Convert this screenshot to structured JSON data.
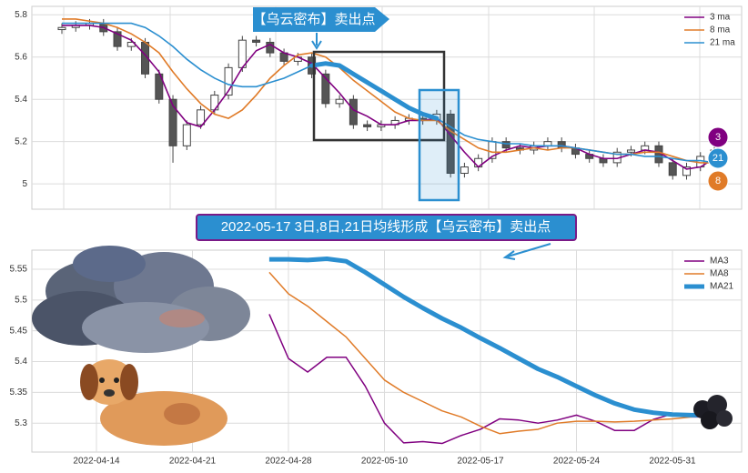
{
  "annotations": {
    "top_banner": "【乌云密布】卖出点",
    "mid_banner": "2022-05-17 3日,8日,21日均线形成【乌云密布】卖出点"
  },
  "chart_data": [
    {
      "type": "candlestick",
      "ylim": [
        4.88,
        5.84
      ],
      "yticks": [
        5.0,
        5.2,
        5.4,
        5.6,
        5.8
      ],
      "grid": true,
      "legend": "upper right",
      "open": [
        5.73,
        5.74,
        5.75,
        5.76,
        5.72,
        5.65,
        5.67,
        5.52,
        5.4,
        5.18,
        5.28,
        5.35,
        5.42,
        5.55,
        5.68,
        5.67,
        5.62,
        5.58,
        5.6,
        5.52,
        5.38,
        5.4,
        5.28,
        5.27,
        5.28,
        5.3,
        5.31,
        5.3,
        5.33,
        5.05,
        5.08,
        5.12,
        5.2,
        5.17,
        5.16,
        5.18,
        5.2,
        5.17,
        5.14,
        5.12,
        5.1,
        5.15,
        5.16,
        5.18,
        5.1,
        5.04,
        5.08,
        5.13
      ],
      "high": [
        5.76,
        5.77,
        5.78,
        5.78,
        5.74,
        5.69,
        5.69,
        5.54,
        5.42,
        5.3,
        5.37,
        5.44,
        5.57,
        5.7,
        5.7,
        5.69,
        5.64,
        5.62,
        5.62,
        5.54,
        5.42,
        5.42,
        5.3,
        5.3,
        5.32,
        5.33,
        5.33,
        5.35,
        5.35,
        5.1,
        5.14,
        5.22,
        5.22,
        5.19,
        5.2,
        5.22,
        5.22,
        5.19,
        5.16,
        5.14,
        5.17,
        5.18,
        5.2,
        5.2,
        5.12,
        5.1,
        5.15,
        5.18
      ],
      "low": [
        5.71,
        5.72,
        5.73,
        5.7,
        5.63,
        5.63,
        5.5,
        5.38,
        5.1,
        5.16,
        5.26,
        5.33,
        5.4,
        5.53,
        5.65,
        5.6,
        5.56,
        5.56,
        5.5,
        5.36,
        5.36,
        5.26,
        5.25,
        5.25,
        5.26,
        5.28,
        5.28,
        5.28,
        5.03,
        5.03,
        5.06,
        5.1,
        5.15,
        5.14,
        5.14,
        5.16,
        5.15,
        5.12,
        5.1,
        5.08,
        5.08,
        5.13,
        5.14,
        5.08,
        5.02,
        5.02,
        5.06,
        5.11
      ],
      "close": [
        5.74,
        5.75,
        5.76,
        5.72,
        5.65,
        5.67,
        5.52,
        5.4,
        5.18,
        5.28,
        5.35,
        5.42,
        5.55,
        5.68,
        5.67,
        5.62,
        5.58,
        5.6,
        5.52,
        5.38,
        5.4,
        5.28,
        5.27,
        5.28,
        5.3,
        5.31,
        5.3,
        5.33,
        5.05,
        5.08,
        5.12,
        5.2,
        5.17,
        5.16,
        5.18,
        5.2,
        5.17,
        5.14,
        5.12,
        5.1,
        5.15,
        5.16,
        5.18,
        5.1,
        5.04,
        5.08,
        5.13,
        5.16
      ],
      "series": [
        {
          "name": "3 ma",
          "color": "#800080",
          "badge": 3,
          "values": [
            5.75,
            5.75,
            5.75,
            5.74,
            5.71,
            5.68,
            5.61,
            5.53,
            5.37,
            5.29,
            5.27,
            5.35,
            5.44,
            5.55,
            5.63,
            5.66,
            5.62,
            5.6,
            5.57,
            5.5,
            5.43,
            5.35,
            5.32,
            5.28,
            5.28,
            5.3,
            5.3,
            5.31,
            5.23,
            5.15,
            5.08,
            5.13,
            5.16,
            5.18,
            5.17,
            5.18,
            5.18,
            5.17,
            5.14,
            5.12,
            5.12,
            5.14,
            5.16,
            5.15,
            5.11,
            5.07,
            5.08,
            5.12
          ]
        },
        {
          "name": "8 ma",
          "color": "#e07b28",
          "badge": 8,
          "values": [
            5.78,
            5.78,
            5.77,
            5.76,
            5.74,
            5.71,
            5.67,
            5.62,
            5.53,
            5.45,
            5.38,
            5.33,
            5.31,
            5.35,
            5.42,
            5.5,
            5.56,
            5.61,
            5.62,
            5.6,
            5.55,
            5.49,
            5.44,
            5.39,
            5.34,
            5.31,
            5.3,
            5.3,
            5.25,
            5.21,
            5.17,
            5.15,
            5.15,
            5.16,
            5.17,
            5.16,
            5.17,
            5.17,
            5.16,
            5.15,
            5.14,
            5.14,
            5.15,
            5.15,
            5.13,
            5.11,
            5.1,
            5.1
          ]
        },
        {
          "name": "21 ma",
          "color": "#2b8fd0",
          "badge": 21,
          "values": [
            5.76,
            5.76,
            5.76,
            5.76,
            5.76,
            5.76,
            5.74,
            5.7,
            5.65,
            5.59,
            5.54,
            5.5,
            5.47,
            5.46,
            5.46,
            5.48,
            5.5,
            5.53,
            5.56,
            5.57,
            5.56,
            5.52,
            5.48,
            5.44,
            5.4,
            5.36,
            5.33,
            5.31,
            5.27,
            5.23,
            5.21,
            5.2,
            5.19,
            5.19,
            5.18,
            5.18,
            5.18,
            5.17,
            5.16,
            5.15,
            5.14,
            5.14,
            5.13,
            5.13,
            5.12,
            5.11,
            5.11,
            5.1
          ]
        }
      ]
    },
    {
      "type": "line",
      "ylim": [
        5.253,
        5.581
      ],
      "yticks": [
        5.3,
        5.35,
        5.4,
        5.45,
        5.5,
        5.55
      ],
      "grid": true,
      "legend": "upper right",
      "categories": [
        null,
        null,
        null,
        "2022-04-14",
        null,
        null,
        null,
        null,
        "2022-04-21",
        null,
        null,
        null,
        null,
        "2022-04-28",
        null,
        null,
        null,
        null,
        "2022-05-10",
        null,
        null,
        null,
        null,
        "2022-05-17",
        null,
        null,
        null,
        null,
        "2022-05-24",
        null,
        null,
        null,
        null,
        "2022-05-31",
        null,
        null
      ],
      "series": [
        {
          "name": "MA3",
          "color": "#800080",
          "values": [
            null,
            null,
            null,
            null,
            null,
            null,
            null,
            null,
            null,
            null,
            null,
            null,
            5.477,
            5.405,
            5.383,
            5.407,
            5.407,
            5.36,
            5.3,
            5.268,
            5.27,
            5.267,
            5.28,
            5.29,
            5.307,
            5.305,
            5.3,
            5.305,
            5.313,
            5.303,
            5.288,
            5.288,
            5.306,
            5.315,
            5.31,
            5.31
          ]
        },
        {
          "name": "MA8",
          "color": "#e07b28",
          "values": [
            null,
            null,
            null,
            null,
            null,
            null,
            null,
            null,
            null,
            null,
            null,
            null,
            5.545,
            5.51,
            5.49,
            5.465,
            5.44,
            5.405,
            5.37,
            5.35,
            5.335,
            5.32,
            5.31,
            5.295,
            5.283,
            5.287,
            5.29,
            5.3,
            5.303,
            5.303,
            5.302,
            5.303,
            5.305,
            5.307,
            5.31,
            5.315
          ]
        },
        {
          "name": "MA21",
          "color": "#2b8fd0",
          "values": [
            null,
            null,
            null,
            null,
            null,
            null,
            null,
            null,
            null,
            null,
            null,
            null,
            5.566,
            5.566,
            5.565,
            5.567,
            5.563,
            5.545,
            5.525,
            5.505,
            5.487,
            5.47,
            5.455,
            5.438,
            5.422,
            5.405,
            5.388,
            5.375,
            5.36,
            5.345,
            5.332,
            5.322,
            5.317,
            5.314,
            5.313,
            5.313
          ]
        }
      ]
    }
  ]
}
